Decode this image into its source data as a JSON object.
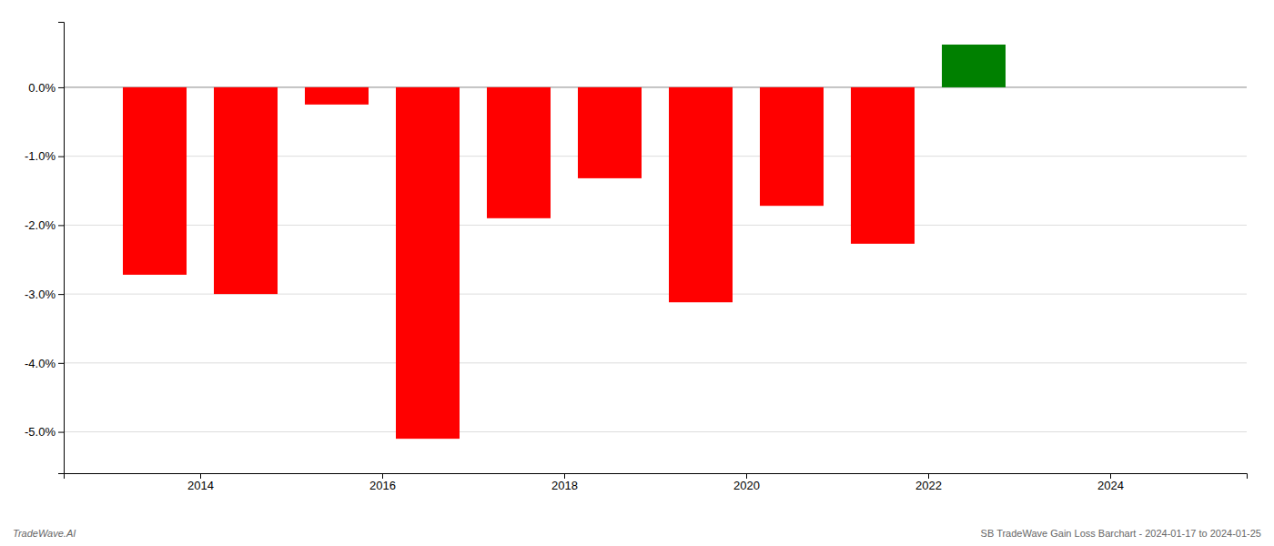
{
  "chart_data": {
    "type": "bar",
    "x": [
      2013.5,
      2014.5,
      2015.5,
      2016.5,
      2017.5,
      2018.5,
      2019.5,
      2020.5,
      2021.5,
      2022.5
    ],
    "values": [
      -2.72,
      -3.0,
      -0.25,
      -5.1,
      -1.9,
      -1.32,
      -3.12,
      -1.72,
      -2.27,
      0.62
    ],
    "colors": [
      "red",
      "red",
      "red",
      "red",
      "red",
      "red",
      "red",
      "red",
      "red",
      "green"
    ],
    "xlim": [
      2012.5,
      2025.5
    ],
    "xticks": [
      2014,
      2016,
      2018,
      2020,
      2022,
      2024
    ],
    "ylim": [
      -5.6,
      0.95
    ],
    "yticks": [
      {
        "value": 0.0,
        "label": "0.0%"
      },
      {
        "value": -1.0,
        "label": "-1.0%"
      },
      {
        "value": -2.0,
        "label": "-2.0%"
      },
      {
        "value": -3.0,
        "label": "-3.0%"
      },
      {
        "value": -4.0,
        "label": "-4.0%"
      },
      {
        "value": -5.0,
        "label": "-5.0%"
      }
    ],
    "grid": true,
    "annotations": [
      "TradeWave.AI",
      "SB TradeWave Gain Loss Barchart - 2024-01-17 to 2024-01-25"
    ]
  }
}
